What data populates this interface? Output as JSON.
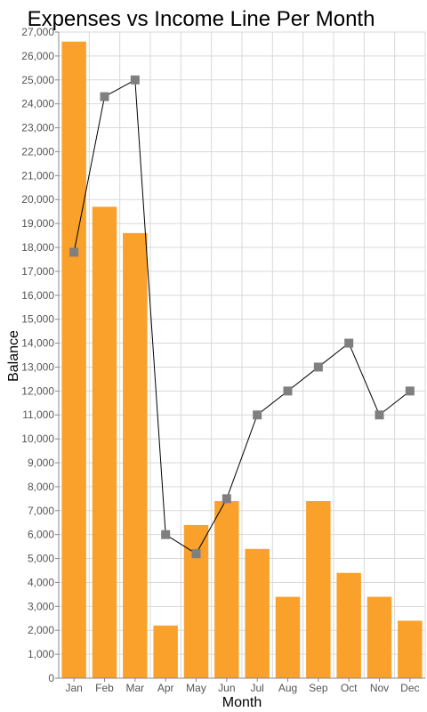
{
  "chart_data": {
    "type": "bar",
    "title": "Expenses vs Income Line Per Month",
    "xlabel": "Month",
    "ylabel": "Balance",
    "ylim": [
      0,
      27000
    ],
    "y_tick_step": 1000,
    "grid": true,
    "categories": [
      "Jan",
      "Feb",
      "Mar",
      "Apr",
      "May",
      "Jun",
      "Jul",
      "Aug",
      "Sep",
      "Oct",
      "Nov",
      "Dec"
    ],
    "series": [
      {
        "type": "bar",
        "color": "#f9a12b",
        "values": [
          26600,
          19700,
          18600,
          2200,
          6400,
          7400,
          5400,
          3400,
          7400,
          4400,
          3400,
          2400
        ]
      },
      {
        "type": "line",
        "color": "#000000",
        "marker": "square",
        "marker_color": "#7f7f7f",
        "values": [
          17800,
          24300,
          25000,
          6000,
          5200,
          7500,
          11000,
          12000,
          13000,
          14000,
          11000,
          12000
        ]
      }
    ]
  }
}
